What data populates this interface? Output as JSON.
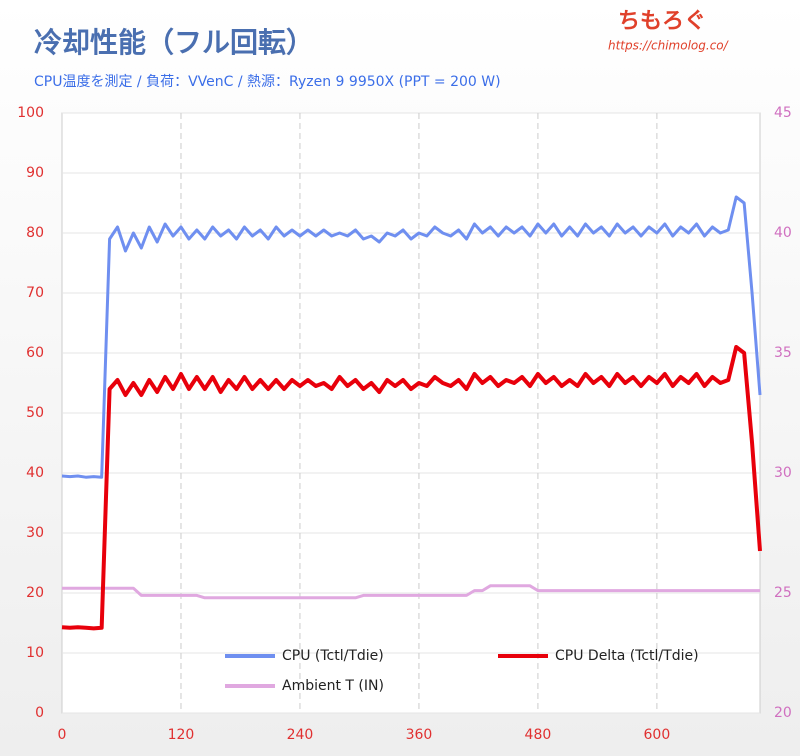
{
  "chart_data": {
    "type": "line",
    "title": "冷却性能（フル回転）",
    "subtitle": "CPU温度を測定 / 負荷：VVenC / 熱源：Ryzen 9 9950X (PPT = 200 W)",
    "logo": "ちもろぐ",
    "url": "https://chimolog.co/",
    "x": [
      0,
      8,
      16,
      24,
      32,
      40,
      48,
      56,
      64,
      72,
      80,
      88,
      96,
      104,
      112,
      120,
      128,
      136,
      144,
      152,
      160,
      168,
      176,
      184,
      192,
      200,
      208,
      216,
      224,
      232,
      240,
      248,
      256,
      264,
      272,
      280,
      288,
      296,
      304,
      312,
      320,
      328,
      336,
      344,
      352,
      360,
      368,
      376,
      384,
      392,
      400,
      408,
      416,
      424,
      432,
      440,
      448,
      456,
      464,
      472,
      480,
      488,
      496,
      504,
      512,
      520,
      528,
      536,
      544,
      552,
      560,
      568,
      576,
      584,
      592,
      600,
      608,
      616,
      624,
      632,
      640,
      648,
      656,
      664,
      672,
      680,
      688,
      696,
      704
    ],
    "series": [
      {
        "name": "CPU (Tctl/Tdie)",
        "color": "#6f8ff0",
        "values": [
          39.5,
          39.4,
          39.5,
          39.3,
          39.4,
          39.3,
          79,
          81,
          77,
          80,
          77.5,
          81,
          78.5,
          81.5,
          79.5,
          81,
          79,
          80.5,
          79,
          81,
          79.5,
          80.5,
          79,
          81,
          79.5,
          80.5,
          79,
          81,
          79.5,
          80.5,
          79.5,
          80.5,
          79.5,
          80.5,
          79.5,
          80,
          79.5,
          80.5,
          79,
          79.5,
          78.5,
          80,
          79.5,
          80.5,
          79,
          80,
          79.5,
          81,
          80,
          79.5,
          80.5,
          79,
          81.5,
          80,
          81,
          79.5,
          81,
          80,
          81,
          79.5,
          81.5,
          80,
          81.5,
          79.5,
          81,
          79.5,
          81.5,
          80,
          81,
          79.5,
          81.5,
          80,
          81,
          79.5,
          81,
          80,
          81.5,
          79.5,
          81,
          80,
          81.5,
          79.5,
          81,
          80,
          80.5,
          86,
          85,
          70,
          53
        ]
      },
      {
        "name": "CPU Delta (Tctl/Tdie)",
        "color": "#e8000b",
        "values": [
          14.3,
          14.2,
          14.3,
          14.2,
          14.1,
          14.2,
          54,
          55.5,
          53,
          55,
          53,
          55.5,
          53.5,
          56,
          54,
          56.5,
          54,
          56,
          54,
          56,
          53.5,
          55.5,
          54,
          56,
          54,
          55.5,
          54,
          55.5,
          54,
          55.5,
          54.5,
          55.5,
          54.5,
          55,
          54,
          56,
          54.5,
          55.5,
          54,
          55,
          53.5,
          55.5,
          54.5,
          55.5,
          54,
          55,
          54.5,
          56,
          55,
          54.5,
          55.5,
          54,
          56.5,
          55,
          56,
          54.5,
          55.5,
          55,
          56,
          54.5,
          56.5,
          55,
          56,
          54.5,
          55.5,
          54.5,
          56.5,
          55,
          56,
          54.5,
          56.5,
          55,
          56,
          54.5,
          56,
          55,
          56.5,
          54.5,
          56,
          55,
          56.5,
          54.5,
          56,
          55,
          55.5,
          61,
          60,
          45,
          27
        ]
      },
      {
        "name": "Ambient T (IN)",
        "color": "#e0a8e0",
        "axis": "y2",
        "values": [
          25.2,
          25.2,
          25.2,
          25.2,
          25.2,
          25.2,
          25.2,
          25.2,
          25.2,
          25.2,
          24.9,
          24.9,
          24.9,
          24.9,
          24.9,
          24.9,
          24.9,
          24.9,
          24.8,
          24.8,
          24.8,
          24.8,
          24.8,
          24.8,
          24.8,
          24.8,
          24.8,
          24.8,
          24.8,
          24.8,
          24.8,
          24.8,
          24.8,
          24.8,
          24.8,
          24.8,
          24.8,
          24.8,
          24.9,
          24.9,
          24.9,
          24.9,
          24.9,
          24.9,
          24.9,
          24.9,
          24.9,
          24.9,
          24.9,
          24.9,
          24.9,
          24.9,
          25.1,
          25.1,
          25.3,
          25.3,
          25.3,
          25.3,
          25.3,
          25.3,
          25.1,
          25.1,
          25.1,
          25.1,
          25.1,
          25.1,
          25.1,
          25.1,
          25.1,
          25.1,
          25.1,
          25.1,
          25.1,
          25.1,
          25.1,
          25.1,
          25.1,
          25.1,
          25.1,
          25.1,
          25.1,
          25.1,
          25.1,
          25.1,
          25.1,
          25.1,
          25.1,
          25.1,
          25.1
        ]
      }
    ],
    "xlim": [
      0,
      704
    ],
    "xticks": [
      0,
      120,
      240,
      360,
      480,
      600
    ],
    "ylim": [
      0,
      100
    ],
    "yticks": [
      0,
      10,
      20,
      30,
      40,
      50,
      60,
      70,
      80,
      90,
      100
    ],
    "y2lim": [
      20,
      45
    ],
    "y2ticks": [
      20,
      25,
      30,
      35,
      40,
      45
    ],
    "grid": true
  }
}
